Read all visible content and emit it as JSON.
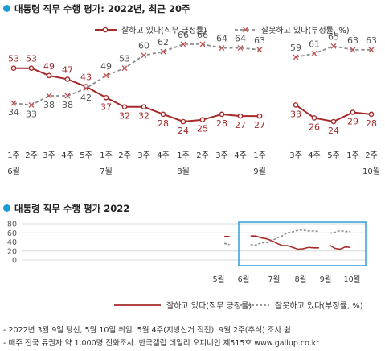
{
  "top": {
    "heading": "대통령 직무 수행 평가: 2022년, 최근 20주"
  },
  "bottom": {
    "heading": "대통령 직무 수행 평가 2022"
  },
  "legend": {
    "positive": "잘하고 있다(직무 긍정률)",
    "negative": "잘못하고 있다(부정률, %)"
  },
  "footnotes": [
    "- 2022년 3월 9일 당선, 5월 10일 취임. 5월 4주(지방선거 직전), 9월 2주(추석) 조사 쉼",
    "- 매주 전국 유권자 약 1,000명 전화조사. 한국갤럽 데일리 오피니언 제515호 www.gallup.co.kr"
  ],
  "colors": {
    "positive": "#a52a2a",
    "negative": "#8c8c8c",
    "accent": "#1f9ad6"
  },
  "chart_data": [
    {
      "type": "line",
      "title": "대통령 직무 수행 평가: 2022년, 최근 20주",
      "x_labels": [
        "1주",
        "2주",
        "3주",
        "4주",
        "5주",
        "1주",
        "2주",
        "3주",
        "4주",
        "1주",
        "2주",
        "3주",
        "4주",
        "1주",
        "1주",
        "3주",
        "4주",
        "5주",
        "1주",
        "2주"
      ],
      "month_labels": [
        {
          "label": "6월",
          "at": 0
        },
        {
          "label": "7월",
          "at": 5
        },
        {
          "label": "8월",
          "at": 9
        },
        {
          "label": "9월",
          "at": 13
        },
        {
          "label": "10월",
          "at": 19
        }
      ],
      "series": [
        {
          "name": "잘하고 있다(직무 긍정률)",
          "key": "positive",
          "marker": "circle",
          "values": [
            53,
            53,
            49,
            47,
            43,
            37,
            32,
            32,
            28,
            24,
            25,
            28,
            27,
            27,
            null,
            33,
            26,
            24,
            29,
            28
          ]
        },
        {
          "name": "잘못하고 있다(부정률, %)",
          "key": "negative",
          "marker": "x",
          "values": [
            34,
            33,
            38,
            38,
            42,
            49,
            53,
            60,
            62,
            66,
            66,
            64,
            64,
            63,
            null,
            59,
            61,
            65,
            63,
            63
          ]
        }
      ],
      "ylim": [
        0,
        70
      ]
    },
    {
      "type": "line",
      "title": "대통령 직무 수행 평가 2022",
      "y_ticks": [
        0,
        20,
        40,
        60,
        80
      ],
      "ylim": [
        0,
        80
      ],
      "x_labels": [
        "5월",
        "6월",
        "7월",
        "8월",
        "9월",
        "10월"
      ],
      "highlight": "최근 20주",
      "series": [
        {
          "name": "잘하고 있다(직무 긍정률)",
          "key": "positive",
          "values": [
            52,
            52,
            null,
            null,
            null,
            53,
            53,
            49,
            47,
            43,
            37,
            32,
            32,
            28,
            24,
            25,
            28,
            27,
            27,
            null,
            33,
            26,
            24,
            29,
            28
          ]
        },
        {
          "name": "잘못하고 있다(부정률, %)",
          "key": "negative",
          "values": [
            37,
            34,
            null,
            null,
            null,
            34,
            33,
            38,
            38,
            42,
            49,
            53,
            60,
            62,
            66,
            66,
            64,
            64,
            63,
            null,
            59,
            61,
            65,
            63,
            63
          ]
        }
      ]
    }
  ]
}
